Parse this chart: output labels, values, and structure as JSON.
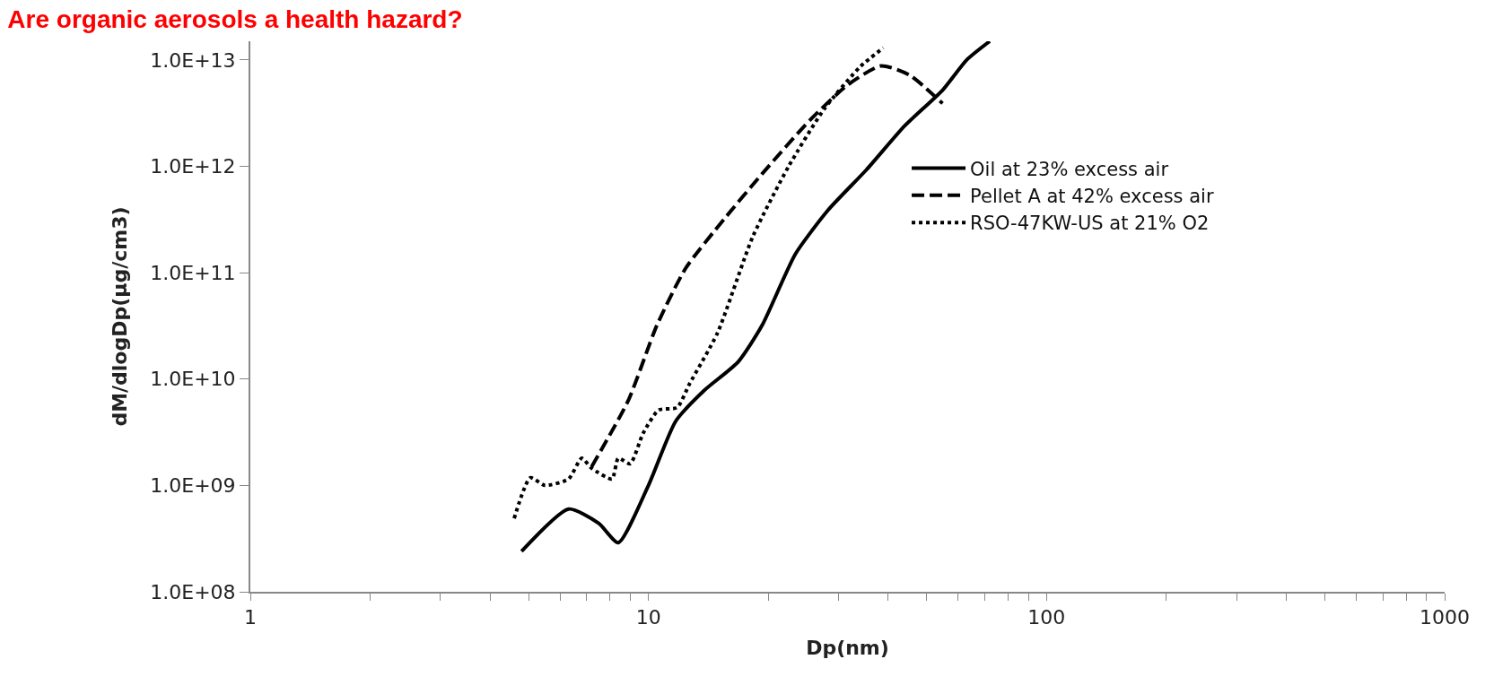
{
  "chart_data": {
    "type": "line",
    "title": "Are organic aerosols a health hazard?",
    "xlabel": "Dp(nm)",
    "ylabel": "dM/dlogDp(µg/cm3)",
    "log": "xy",
    "grid": false,
    "legend": "right",
    "marker": "none",
    "xlim": [
      1,
      1000
    ],
    "xticks": [
      1,
      {
        "value": 2,
        "label": null
      },
      {
        "value": 3,
        "label": null
      },
      {
        "value": 4,
        "label": null
      },
      {
        "value": 5,
        "label": null
      },
      {
        "value": 6,
        "label": null
      },
      {
        "value": 7,
        "label": null
      },
      {
        "value": 8,
        "label": null
      },
      {
        "value": 9,
        "label": null
      },
      10,
      {
        "value": 20,
        "label": null
      },
      {
        "value": 30,
        "label": null
      },
      {
        "value": 40,
        "label": null
      },
      {
        "value": 50,
        "label": null
      },
      {
        "value": 60,
        "label": null
      },
      {
        "value": 70,
        "label": null
      },
      {
        "value": 80,
        "label": null
      },
      {
        "value": 90,
        "label": null
      },
      100,
      {
        "value": 200,
        "label": null
      },
      {
        "value": 300,
        "label": null
      },
      {
        "value": 400,
        "label": null
      },
      {
        "value": 500,
        "label": null
      },
      {
        "value": 600,
        "label": null
      },
      {
        "value": 700,
        "label": null
      },
      {
        "value": 800,
        "label": null
      },
      {
        "value": 900,
        "label": null
      },
      1000
    ],
    "ylim": [
      100000000.0,
      15000000000000.0
    ],
    "yticks": [
      {
        "value": 100000000.0,
        "label": "1.0E+08"
      },
      {
        "value": 1000000000.0,
        "label": "1.0E+09"
      },
      {
        "value": 10000000000.0,
        "label": "1.0E+10"
      },
      {
        "value": 100000000000.0,
        "label": "1.0E+11"
      },
      {
        "value": 1000000000000.0,
        "label": "1.0E+12"
      },
      {
        "value": 10000000000000.0,
        "label": "1.0E+13"
      }
    ],
    "series": [
      {
        "name": "Oil at 23% excess air",
        "color": "#000000",
        "line_style": "solid",
        "x": [
          4.8,
          6.3,
          7.5,
          8.4,
          10,
          11.7,
          13.8,
          16.8,
          19.3,
          23.4,
          28.3,
          35.3,
          44,
          54.8,
          63,
          72
        ],
        "values": [
          240000000.0,
          600000000.0,
          440000000.0,
          290000000.0,
          1000000000.0,
          4000000000.0,
          7800000000.0,
          14500000000.0,
          32000000000.0,
          150000000000.0,
          390000000000.0,
          930000000000.0,
          2400000000000.0,
          5200000000000.0,
          10000000000000.0,
          15000000000000.0
        ]
      },
      {
        "name": "Pellet A at 42% excess air",
        "color": "#000000",
        "line_style": "dashed",
        "x": [
          7.2,
          8.9,
          10.5,
          12.4,
          15.5,
          19.3,
          25.4,
          31.6,
          38.4,
          45.3,
          54.8
        ],
        "values": [
          1500000000.0,
          6300000000.0,
          32000000000.0,
          110000000000.0,
          320000000000.0,
          850000000000.0,
          2700000000000.0,
          5800000000000.0,
          8800000000000.0,
          7200000000000.0,
          3900000000000.0
        ]
      },
      {
        "name": "RSO-47KW-US at 21% O2",
        "color": "#000000",
        "line_style": "dotted",
        "x": [
          4.6,
          5.05,
          5.5,
          6.3,
          6.8,
          7.2,
          8.1,
          8.4,
          9.0,
          9.7,
          10.6,
          11.8,
          12.7,
          14.9,
          18.3,
          22.5,
          27.7,
          34.1,
          38.9
        ],
        "values": [
          490000000.0,
          1180000000.0,
          1000000000.0,
          1150000000.0,
          1800000000.0,
          1450000000.0,
          1150000000.0,
          1800000000.0,
          1600000000.0,
          3100000000.0,
          5100000000.0,
          5400000000.0,
          9100000000.0,
          27000000000.0,
          220000000000.0,
          1000000000000.0,
          3500000000000.0,
          8700000000000.0,
          13000000000000.0
        ]
      }
    ]
  }
}
